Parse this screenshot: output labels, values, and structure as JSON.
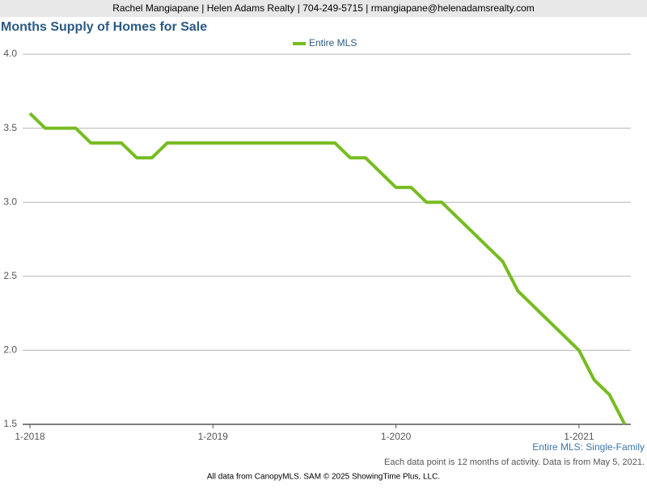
{
  "header": "Rachel Mangiapane | Helen Adams Realty | 704-249-5715 | rmangiapane@helenadamsrealty.com",
  "chart_data": {
    "type": "line",
    "title": "Months Supply of Homes for Sale",
    "categories": [
      "1-2018",
      null,
      null,
      null,
      null,
      null,
      null,
      null,
      null,
      null,
      null,
      null,
      "1-2019",
      null,
      null,
      null,
      null,
      null,
      null,
      null,
      null,
      null,
      null,
      null,
      "1-2020",
      null,
      null,
      null,
      null,
      null,
      null,
      null,
      null,
      null,
      null,
      null,
      "1-2021",
      null,
      null,
      null
    ],
    "series": [
      {
        "name": "Entire MLS",
        "color": "#76bc21",
        "values": [
          3.6,
          3.5,
          3.5,
          3.5,
          3.4,
          3.4,
          3.4,
          3.3,
          3.3,
          3.4,
          3.4,
          3.4,
          3.4,
          3.4,
          3.4,
          3.4,
          3.4,
          3.4,
          3.4,
          3.4,
          3.4,
          3.3,
          3.3,
          3.2,
          3.1,
          3.1,
          3.0,
          3.0,
          2.9,
          2.8,
          2.7,
          2.6,
          2.4,
          2.3,
          2.2,
          2.1,
          2.0,
          1.8,
          1.7,
          1.5
        ]
      }
    ],
    "ylim": [
      1.5,
      4.0
    ],
    "yticks": [
      1.5,
      {
        "value": 2,
        "label": "2.0"
      },
      2.5,
      {
        "value": 3,
        "label": "3.0"
      },
      3.5,
      {
        "value": 4,
        "label": "4.0"
      }
    ],
    "grid": true,
    "legend": "top",
    "subtitle_note": "Entire MLS: Single-Family",
    "footnote": "Each data point is 12 months of activity. Data is from May 5, 2021."
  },
  "footer": "All data from CanopyMLS. SAM © 2025 ShowingTime Plus, LLC."
}
